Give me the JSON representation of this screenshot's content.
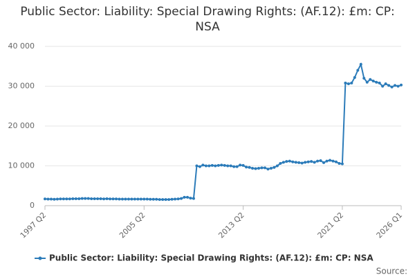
{
  "chart_data": {
    "type": "line",
    "title": "Public Sector: Liability: Special Drawing Rights: (AF.12): £m: CP: NSA",
    "source_label": "Source:",
    "categories": [
      "1997 Q2",
      null,
      null,
      null,
      null,
      null,
      null,
      null,
      null,
      null,
      null,
      null,
      null,
      null,
      null,
      null,
      null,
      null,
      null,
      null,
      null,
      null,
      null,
      null,
      null,
      null,
      null,
      null,
      null,
      null,
      null,
      null,
      "2005 Q2",
      null,
      null,
      null,
      null,
      null,
      null,
      null,
      null,
      null,
      null,
      null,
      null,
      null,
      null,
      null,
      null,
      null,
      null,
      null,
      null,
      null,
      null,
      null,
      null,
      null,
      null,
      null,
      null,
      null,
      null,
      null,
      "2013 Q2",
      null,
      null,
      null,
      null,
      null,
      null,
      null,
      null,
      null,
      null,
      null,
      null,
      null,
      null,
      null,
      null,
      null,
      null,
      null,
      null,
      null,
      null,
      null,
      null,
      null,
      null,
      null,
      null,
      null,
      null,
      null,
      "2021 Q2",
      null,
      null,
      null,
      null,
      null,
      null,
      null,
      null,
      null,
      null,
      null,
      null,
      null,
      null,
      null,
      null,
      null,
      null,
      "2026 Q1"
    ],
    "series": [
      {
        "name": "Public Sector: Liability: Special Drawing Rights: (AF.12): £m: CP: NSA",
        "color": "#2b7bb9",
        "values": [
          1700,
          1650,
          1650,
          1600,
          1650,
          1700,
          1700,
          1700,
          1700,
          1750,
          1750,
          1750,
          1800,
          1800,
          1800,
          1750,
          1750,
          1750,
          1750,
          1700,
          1750,
          1700,
          1700,
          1700,
          1650,
          1650,
          1650,
          1650,
          1650,
          1650,
          1650,
          1650,
          1650,
          1650,
          1600,
          1600,
          1600,
          1550,
          1550,
          1550,
          1550,
          1600,
          1650,
          1700,
          1800,
          2100,
          2100,
          1900,
          1800,
          10000,
          9800,
          10200,
          10000,
          10000,
          10100,
          10000,
          10100,
          10200,
          10100,
          10000,
          10000,
          9800,
          9800,
          10200,
          10100,
          9700,
          9600,
          9400,
          9300,
          9400,
          9500,
          9500,
          9200,
          9400,
          9600,
          10000,
          10600,
          10900,
          11100,
          11200,
          11000,
          10900,
          10800,
          10700,
          10900,
          11000,
          11100,
          10900,
          11200,
          11300,
          10800,
          11200,
          11400,
          11200,
          11000,
          10600,
          10500,
          30800,
          30600,
          30800,
          32200,
          34000,
          35500,
          32000,
          31000,
          31700,
          31300,
          31000,
          30800,
          30000,
          30600,
          30200,
          29800,
          30200,
          30000,
          30300
        ]
      }
    ],
    "ylim": [
      0,
      40000
    ],
    "yticks": [
      0,
      {
        "value": 10000,
        "label": "10 000"
      },
      {
        "value": 20000,
        "label": "20 000"
      },
      {
        "value": 30000,
        "label": "30 000"
      },
      {
        "value": 40000,
        "label": "40 000"
      }
    ],
    "grid": true
  }
}
